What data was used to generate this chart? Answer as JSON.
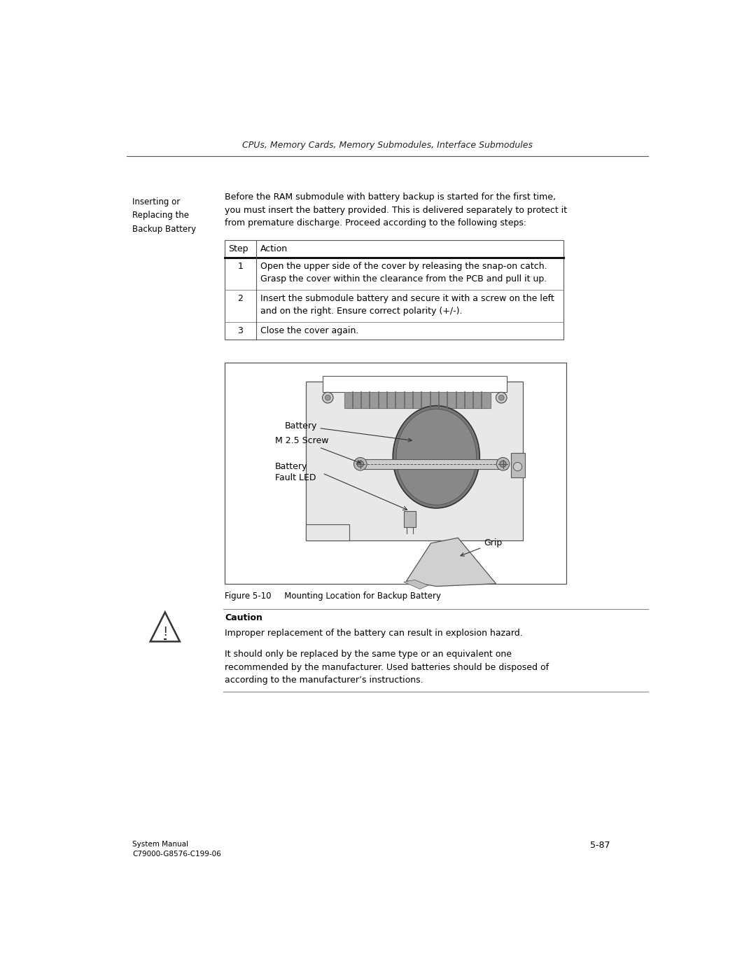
{
  "header_text": "CPUs, Memory Cards, Memory Submodules, Interface Submodules",
  "left_label": "Inserting or\nReplacing the\nBackup Battery",
  "intro_text": "Before the RAM submodule with battery backup is started for the first time,\nyou must insert the battery provided. This is delivered separately to protect it\nfrom premature discharge. Proceed according to the following steps:",
  "table_headers": [
    "Step",
    "Action"
  ],
  "table_rows": [
    [
      "1",
      "Open the upper side of the cover by releasing the snap-on catch.\nGrasp the cover within the clearance from the PCB and pull it up."
    ],
    [
      "2",
      "Insert the submodule battery and secure it with a screw on the left\nand on the right. Ensure correct polarity (+/-)."
    ],
    [
      "3",
      "Close the cover again."
    ]
  ],
  "figure_caption": "Figure 5-10     Mounting Location for Backup Battery",
  "caution_title": "Caution",
  "caution_text1": "Improper replacement of the battery can result in explosion hazard.",
  "caution_text2": "It should only be replaced by the same type or an equivalent one\nrecommended by the manufacturer. Used batteries should be disposed of\naccording to the manufacturer’s instructions.",
  "footer_left": "System Manual\nC79000-G8576-C199-06",
  "footer_right": "5-87",
  "bg_color": "#ffffff",
  "text_color": "#000000"
}
